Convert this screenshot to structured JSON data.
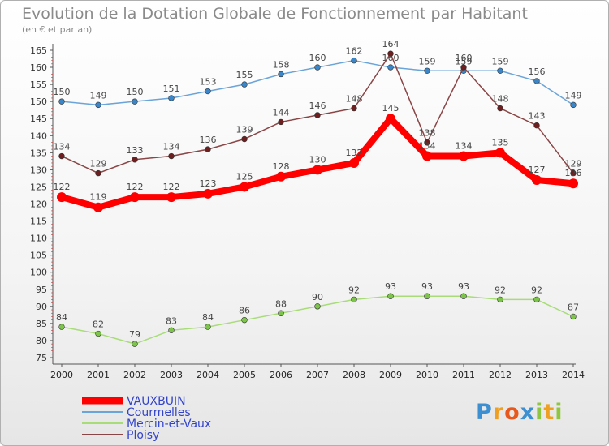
{
  "title": "Evolution de la Dotation Globale de Fonctionnement par Habitant",
  "subtitle": "(en € et par an)",
  "logo_text": "Proxiti",
  "chart_data": {
    "type": "line",
    "title": "Evolution de la Dotation Globale de Fonctionnement par Habitant",
    "ylabel": "(en € et par an)",
    "x": [
      2000,
      2001,
      2002,
      2003,
      2004,
      2005,
      2006,
      2007,
      2008,
      2009,
      2010,
      2011,
      2012,
      2013,
      2014
    ],
    "ylim": [
      75,
      165
    ],
    "yticks": [
      75,
      80,
      85,
      90,
      95,
      100,
      105,
      110,
      115,
      120,
      125,
      130,
      135,
      140,
      145,
      150,
      155,
      160,
      165
    ],
    "grid": false,
    "legend_position": "bottom-left",
    "series": [
      {
        "name": "Courmelles",
        "color": "#6aa4d8",
        "point_color": "#3a86c8",
        "values": [
          150,
          149,
          150,
          151,
          153,
          155,
          158,
          160,
          162,
          160,
          159,
          159,
          159,
          156,
          149
        ]
      },
      {
        "name": "Mercin-et-Vaux",
        "color": "#a8dc78",
        "point_color": "#7cc44a",
        "values": [
          84,
          82,
          79,
          83,
          84,
          86,
          88,
          90,
          92,
          93,
          93,
          93,
          92,
          92,
          87
        ]
      },
      {
        "name": "Ploisy",
        "color": "#8a4646",
        "point_color": "#6e1e1e",
        "values": [
          134,
          129,
          133,
          134,
          136,
          139,
          144,
          146,
          148,
          164,
          138,
          160,
          148,
          143,
          129
        ]
      },
      {
        "name": "VAUXBUIN",
        "color": "#ff0000",
        "point_color": "#ff0000",
        "values": [
          122,
          119,
          122,
          122,
          123,
          125,
          128,
          130,
          132,
          145,
          134,
          134,
          135,
          127,
          126
        ]
      }
    ],
    "legend": [
      "VAUXBUIN",
      "Courmelles",
      "Mercin-et-Vaux",
      "Ploisy"
    ]
  }
}
